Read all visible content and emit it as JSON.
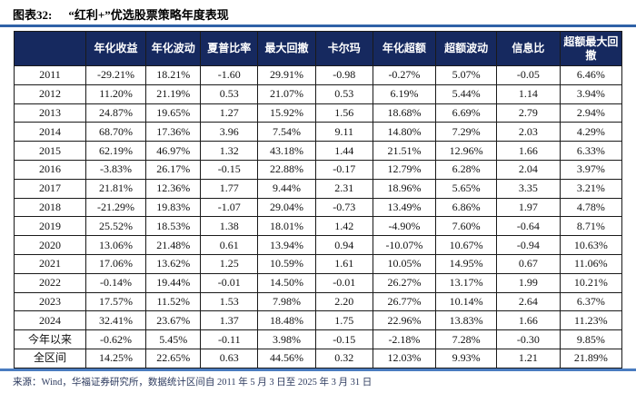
{
  "title": {
    "fig_label": "图表32:",
    "text": "“红利+”优选股票策略年度表现"
  },
  "colors": {
    "header_bg": "#16295f",
    "header_text": "#ffffff",
    "rule_top": "#2f62a7",
    "rule_bottom": "#4a7cc0"
  },
  "table": {
    "headers": [
      "",
      "年化收益",
      "年化波动",
      "夏普比率",
      "最大回撤",
      "卡尔玛",
      "年化超额",
      "超额波动",
      "信息比",
      "超额最大回撤"
    ],
    "rows": [
      [
        "2011",
        "-29.21%",
        "18.21%",
        "-1.60",
        "29.91%",
        "-0.98",
        "-0.27%",
        "5.07%",
        "-0.05",
        "6.46%"
      ],
      [
        "2012",
        "11.20%",
        "21.19%",
        "0.53",
        "21.07%",
        "0.53",
        "6.19%",
        "5.44%",
        "1.14",
        "3.94%"
      ],
      [
        "2013",
        "24.87%",
        "19.65%",
        "1.27",
        "15.92%",
        "1.56",
        "18.68%",
        "6.69%",
        "2.79",
        "2.94%"
      ],
      [
        "2014",
        "68.70%",
        "17.36%",
        "3.96",
        "7.54%",
        "9.11",
        "14.80%",
        "7.29%",
        "2.03",
        "4.29%"
      ],
      [
        "2015",
        "62.19%",
        "46.97%",
        "1.32",
        "43.18%",
        "1.44",
        "21.51%",
        "12.96%",
        "1.66",
        "6.33%"
      ],
      [
        "2016",
        "-3.83%",
        "26.17%",
        "-0.15",
        "22.88%",
        "-0.17",
        "12.79%",
        "6.28%",
        "2.04",
        "3.97%"
      ],
      [
        "2017",
        "21.81%",
        "12.36%",
        "1.77",
        "9.44%",
        "2.31",
        "18.96%",
        "5.65%",
        "3.35",
        "3.21%"
      ],
      [
        "2018",
        "-21.29%",
        "19.83%",
        "-1.07",
        "29.04%",
        "-0.73",
        "13.49%",
        "6.86%",
        "1.97",
        "4.78%"
      ],
      [
        "2019",
        "25.52%",
        "18.53%",
        "1.38",
        "18.01%",
        "1.42",
        "-4.90%",
        "7.60%",
        "-0.64",
        "8.71%"
      ],
      [
        "2020",
        "13.06%",
        "21.48%",
        "0.61",
        "13.94%",
        "0.94",
        "-10.07%",
        "10.67%",
        "-0.94",
        "10.63%"
      ],
      [
        "2021",
        "17.06%",
        "13.62%",
        "1.25",
        "10.59%",
        "1.61",
        "10.05%",
        "14.95%",
        "0.67",
        "11.06%"
      ],
      [
        "2022",
        "-0.14%",
        "19.44%",
        "-0.01",
        "14.50%",
        "-0.01",
        "26.27%",
        "13.17%",
        "1.99",
        "10.21%"
      ],
      [
        "2023",
        "17.57%",
        "11.52%",
        "1.53",
        "7.98%",
        "2.20",
        "26.77%",
        "10.14%",
        "2.64",
        "6.37%"
      ],
      [
        "2024",
        "32.41%",
        "23.67%",
        "1.37",
        "18.48%",
        "1.75",
        "22.96%",
        "13.83%",
        "1.66",
        "11.23%"
      ],
      [
        "今年以来",
        "-0.62%",
        "5.45%",
        "-0.11",
        "3.98%",
        "-0.15",
        "-2.18%",
        "7.28%",
        "-0.30",
        "9.85%"
      ],
      [
        "全区间",
        "14.25%",
        "22.65%",
        "0.63",
        "44.56%",
        "0.32",
        "12.03%",
        "9.93%",
        "1.21",
        "21.89%"
      ]
    ]
  },
  "footer": {
    "source": "来源：Wind，华福证券研究所，数据统计区间自 2011 年 5 月 3 日至 2025 年 3 月 31 日"
  }
}
